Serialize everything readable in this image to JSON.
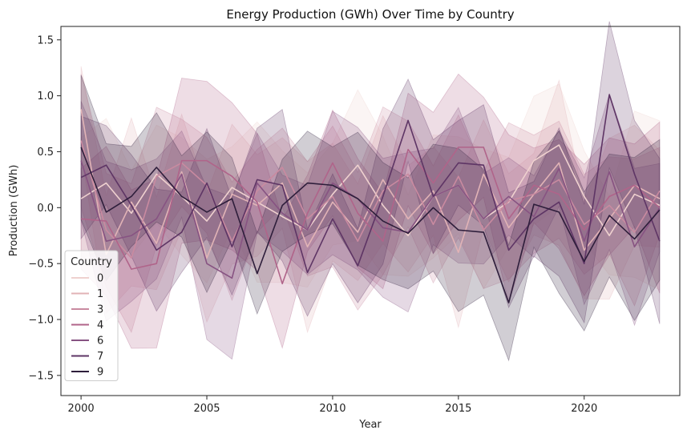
{
  "chart_data": {
    "type": "line",
    "title": "Energy Production (GWh) Over Time by Country",
    "xlabel": "Year",
    "ylabel": "Production (GWh)",
    "xlim": [
      1999.2,
      2023.8
    ],
    "ylim": [
      -1.68,
      1.62
    ],
    "xticks": [
      2000,
      2005,
      2010,
      2015,
      2020
    ],
    "yticks": [
      -1.5,
      -1.0,
      -0.5,
      0.0,
      0.5,
      1.0,
      1.5
    ],
    "ytick_labels": [
      "−1.5",
      "−1.0",
      "−0.5",
      "0.0",
      "0.5",
      "1.0",
      "1.5"
    ],
    "grid": false,
    "legend": {
      "title": "Country",
      "placement": "lower-left"
    },
    "x": [
      2000,
      2001,
      2002,
      2003,
      2004,
      2005,
      2006,
      2007,
      2008,
      2009,
      2010,
      2011,
      2012,
      2013,
      2014,
      2015,
      2016,
      2017,
      2018,
      2019,
      2020,
      2021,
      2022,
      2023
    ],
    "series": [
      {
        "name": "0",
        "color": "#efd1cf",
        "band": 0.55,
        "values": [
          0.08,
          0.22,
          -0.05,
          0.3,
          0.1,
          -0.12,
          0.18,
          0.05,
          -0.08,
          -0.2,
          0.12,
          0.38,
          0.02,
          -0.25,
          0.1,
          0.2,
          -0.1,
          0.05,
          0.42,
          0.56,
          0.1,
          -0.25,
          0.12,
          0.02
        ]
      },
      {
        "name": "1",
        "color": "#e1b3b6",
        "band": 0.55,
        "values": [
          0.88,
          -0.42,
          0.05,
          -0.32,
          0.32,
          -0.45,
          0.12,
          0.02,
          0.22,
          -0.35,
          0.05,
          -0.22,
          0.25,
          -0.1,
          0.15,
          -0.4,
          0.3,
          -0.18,
          0.12,
          0.4,
          -0.38,
          -0.1,
          0.2,
          0.08
        ]
      },
      {
        "name": "3",
        "color": "#c98aa0",
        "band": 0.55,
        "values": [
          0.6,
          -0.2,
          -0.45,
          0.28,
          0.4,
          0.2,
          -0.3,
          0.15,
          0.36,
          -0.1,
          0.1,
          -0.3,
          0.15,
          0.3,
          -0.15,
          0.28,
          -0.2,
          0.06,
          0.12,
          0.25,
          -0.15,
          0.02,
          -0.22,
          0.15
        ]
      },
      {
        "name": "4",
        "color": "#b0648a",
        "band": 0.55,
        "values": [
          -0.1,
          -0.12,
          -0.55,
          -0.5,
          0.42,
          0.42,
          0.28,
          0.05,
          -0.68,
          -0.05,
          0.4,
          -0.05,
          -0.3,
          0.52,
          0.22,
          0.54,
          0.54,
          -0.1,
          0.2,
          0.12,
          -0.2,
          0.1,
          0.2,
          0.0
        ]
      },
      {
        "name": "6",
        "color": "#875382",
        "band": 0.55,
        "values": [
          0.42,
          -0.3,
          -0.25,
          -0.1,
          0.3,
          -0.5,
          -0.63,
          0.22,
          -0.05,
          -0.2,
          0.22,
          0.08,
          -0.18,
          -0.22,
          0.1,
          0.2,
          -0.1,
          0.1,
          -0.08,
          0.35,
          -0.3,
          0.32,
          -0.35,
          0.0
        ]
      },
      {
        "name": "7",
        "color": "#5e3565",
        "band": 0.55,
        "values": [
          0.27,
          0.38,
          0.02,
          -0.38,
          -0.22,
          0.22,
          -0.35,
          0.25,
          0.2,
          -0.58,
          -0.1,
          -0.52,
          0.1,
          0.78,
          0.1,
          0.4,
          0.38,
          -0.38,
          -0.1,
          0.05,
          -0.5,
          1.01,
          0.3,
          -0.3
        ]
      },
      {
        "name": "9",
        "color": "#2e1e3b",
        "band": 0.55,
        "values": [
          0.54,
          -0.04,
          0.1,
          0.36,
          0.1,
          -0.04,
          0.08,
          -0.59,
          0.02,
          0.22,
          0.2,
          0.08,
          -0.12,
          -0.23,
          0.0,
          -0.2,
          -0.22,
          -0.85,
          0.03,
          -0.04,
          -0.48,
          -0.07,
          -0.28,
          -0.02
        ]
      }
    ]
  }
}
